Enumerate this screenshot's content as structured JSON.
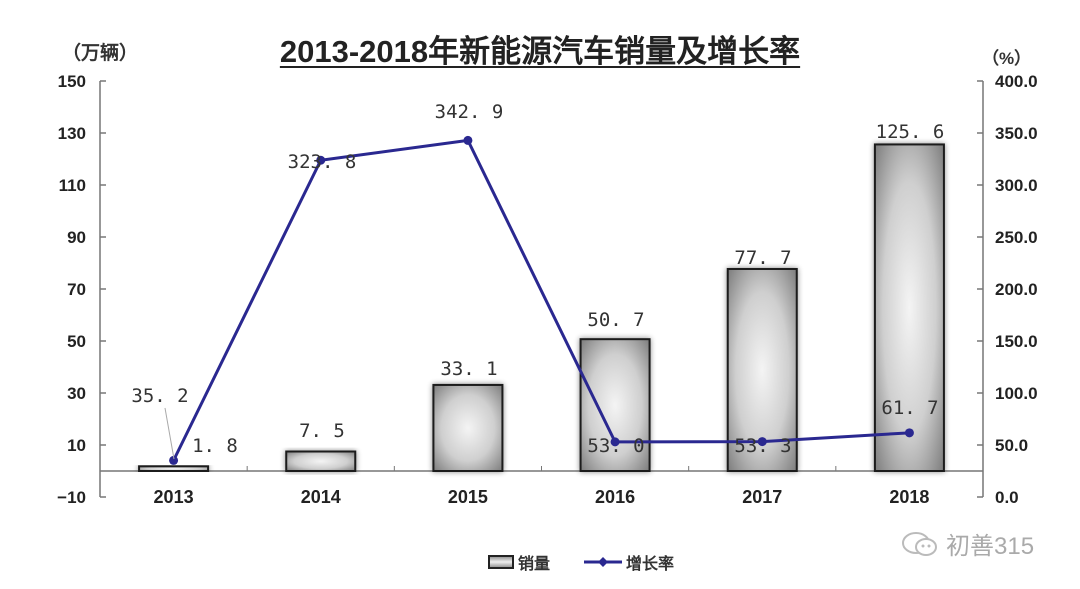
{
  "title": "2013-2018年新能源汽车销量及增长率",
  "unit_left": "（万辆）",
  "unit_right": "（%）",
  "legend": {
    "bar_label": "销量",
    "line_label": "增长率"
  },
  "watermark": {
    "icon": "wechat-icon",
    "text": "初善315"
  },
  "colors": {
    "line": "#2a2890",
    "bar_edge": "#1a1a1a",
    "bar_fill_dark": "#8a8a8a",
    "bar_fill_light": "#f2f2f2"
  },
  "chart_data": {
    "type": "bar+line",
    "title": "2013-2018年新能源汽车销量及增长率",
    "categories": [
      "2013",
      "2014",
      "2015",
      "2016",
      "2017",
      "2018"
    ],
    "series": [
      {
        "name": "销量",
        "type": "bar",
        "axis": "left",
        "values": [
          1.8,
          7.5,
          33.1,
          50.7,
          77.7,
          125.6
        ],
        "labels": [
          "1.8",
          "7.5",
          "33.1",
          "50.7",
          "77.7",
          "125.6"
        ]
      },
      {
        "name": "增长率",
        "type": "line",
        "axis": "right",
        "values": [
          35.2,
          323.8,
          342.9,
          53.0,
          53.3,
          61.7
        ],
        "labels": [
          "35.2",
          "323.8",
          "342.9",
          "53.0",
          "53.3",
          "61.7"
        ]
      }
    ],
    "ylabel_left": "（万辆）",
    "ylabel_right": "（%）",
    "ylim_left": [
      -10,
      150
    ],
    "yticks_left": [
      "150",
      "130",
      "110",
      "90",
      "70",
      "50",
      "30",
      "10",
      "-10"
    ],
    "ylim_right": [
      0,
      400
    ],
    "yticks_right": [
      "400.0",
      "350.0",
      "300.0",
      "250.0",
      "200.0",
      "150.0",
      "100.0",
      "50.0",
      "0.0"
    ],
    "grid": false,
    "legend_position": "bottom"
  }
}
